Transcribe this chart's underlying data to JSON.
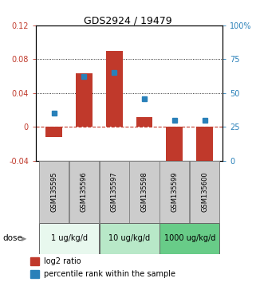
{
  "title": "GDS2924 / 19479",
  "samples": [
    "GSM135595",
    "GSM135596",
    "GSM135597",
    "GSM135598",
    "GSM135599",
    "GSM135600"
  ],
  "log2_ratio": [
    -0.012,
    0.063,
    0.09,
    0.012,
    -0.052,
    -0.044
  ],
  "percentile_rank": [
    35,
    62,
    65,
    46,
    30,
    30
  ],
  "bar_color": "#c0392b",
  "dot_color": "#2980b9",
  "ylim_left": [
    -0.04,
    0.12
  ],
  "ylim_right": [
    0,
    100
  ],
  "yticks_left": [
    -0.04,
    0.0,
    0.04,
    0.08,
    0.12
  ],
  "yticks_right": [
    0,
    25,
    50,
    75,
    100
  ],
  "ytick_labels_left": [
    "-0.04",
    "0",
    "0.04",
    "0.08",
    "0.12"
  ],
  "ytick_labels_right": [
    "0",
    "25",
    "50",
    "75",
    "100%"
  ],
  "hline_y": 0.0,
  "dotted_lines": [
    0.04,
    0.08
  ],
  "dose_groups": [
    {
      "label": "1 ug/kg/d",
      "samples": [
        0,
        1
      ],
      "color": "#e8f8ee"
    },
    {
      "label": "10 ug/kg/d",
      "samples": [
        2,
        3
      ],
      "color": "#b8e8c8"
    },
    {
      "label": "1000 ug/kg/d",
      "samples": [
        4,
        5
      ],
      "color": "#68cc88"
    }
  ],
  "legend_items": [
    {
      "label": "log2 ratio",
      "color": "#c0392b"
    },
    {
      "label": "percentile rank within the sample",
      "color": "#2980b9"
    }
  ],
  "sample_box_color": "#cccccc",
  "dose_label": "dose",
  "bar_width": 0.55,
  "title_fontsize": 9,
  "tick_fontsize": 7,
  "sample_fontsize": 6,
  "dose_fontsize": 7,
  "legend_fontsize": 7
}
